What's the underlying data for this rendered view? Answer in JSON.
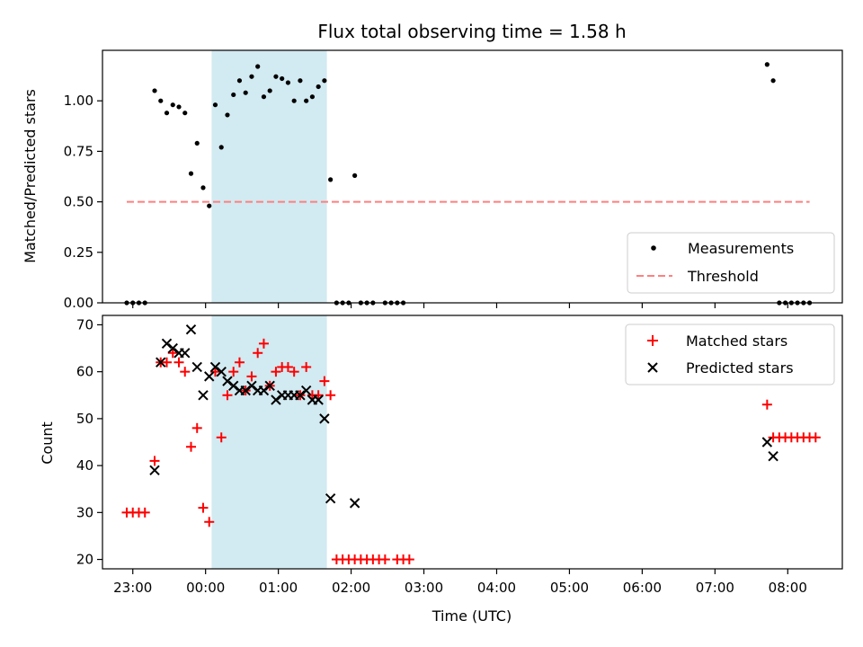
{
  "chart_data": [
    {
      "type": "scatter",
      "title": "Flux total observing time = 1.58 h",
      "xlabel": "",
      "ylabel": "Matched/Predicted stars",
      "ylim": [
        0,
        1.25
      ],
      "yticks": [
        "0.00",
        "0.25",
        "0.50",
        "0.75",
        "1.00"
      ],
      "xlim": [
        "22:35",
        "08:45"
      ],
      "shaded_region": [
        "00:05",
        "01:40"
      ],
      "shaded_color": "#add8e6",
      "legend_position": "lower-right",
      "series": [
        {
          "name": "Measurements",
          "kind": "points",
          "color": "#000000",
          "points": [
            [
              "22:55",
              0
            ],
            [
              "23:00",
              0
            ],
            [
              "23:05",
              0
            ],
            [
              "23:10",
              0
            ],
            [
              "23:18",
              1.05
            ],
            [
              "23:23",
              1.0
            ],
            [
              "23:28",
              0.94
            ],
            [
              "23:33",
              0.98
            ],
            [
              "23:38",
              0.97
            ],
            [
              "23:43",
              0.94
            ],
            [
              "23:48",
              0.64
            ],
            [
              "23:53",
              0.79
            ],
            [
              "23:58",
              0.57
            ],
            [
              "00:03",
              0.48
            ],
            [
              "00:08",
              0.98
            ],
            [
              "00:13",
              0.77
            ],
            [
              "00:18",
              0.93
            ],
            [
              "00:23",
              1.03
            ],
            [
              "00:28",
              1.1
            ],
            [
              "00:33",
              1.04
            ],
            [
              "00:38",
              1.12
            ],
            [
              "00:43",
              1.17
            ],
            [
              "00:48",
              1.02
            ],
            [
              "00:53",
              1.05
            ],
            [
              "00:58",
              1.12
            ],
            [
              "01:03",
              1.11
            ],
            [
              "01:08",
              1.09
            ],
            [
              "01:13",
              1.0
            ],
            [
              "01:18",
              1.1
            ],
            [
              "01:23",
              1.0
            ],
            [
              "01:28",
              1.02
            ],
            [
              "01:33",
              1.07
            ],
            [
              "01:38",
              1.1
            ],
            [
              "01:43",
              0.61
            ],
            [
              "01:48",
              0
            ],
            [
              "01:53",
              0
            ],
            [
              "01:58",
              0
            ],
            [
              "02:03",
              0.63
            ],
            [
              "02:08",
              0
            ],
            [
              "02:13",
              0
            ],
            [
              "02:18",
              0
            ],
            [
              "02:28",
              0
            ],
            [
              "02:33",
              0
            ],
            [
              "02:38",
              0
            ],
            [
              "02:43",
              0
            ],
            [
              "07:43",
              1.18
            ],
            [
              "07:48",
              1.1
            ],
            [
              "07:53",
              0
            ],
            [
              "07:58",
              0
            ],
            [
              "08:03",
              0
            ],
            [
              "08:08",
              0
            ],
            [
              "08:13",
              0
            ],
            [
              "08:18",
              0
            ]
          ]
        },
        {
          "name": "Threshold",
          "kind": "dashed-line",
          "color": "#ff7f7f",
          "points": [
            [
              "22:55",
              0.5
            ],
            [
              "08:18",
              0.5
            ]
          ]
        }
      ]
    },
    {
      "type": "scatter",
      "title": "",
      "xlabel": "Time (UTC)",
      "ylabel": "Count",
      "ylim": [
        18,
        72
      ],
      "yticks": [
        "20",
        "30",
        "40",
        "50",
        "60",
        "70"
      ],
      "xlim": [
        "22:35",
        "08:45"
      ],
      "xticks": [
        "23:00",
        "00:00",
        "01:00",
        "02:00",
        "03:00",
        "04:00",
        "05:00",
        "06:00",
        "07:00",
        "08:00"
      ],
      "shaded_region": [
        "00:05",
        "01:40"
      ],
      "shaded_color": "#add8e6",
      "legend_position": "top-right",
      "series": [
        {
          "name": "Matched stars",
          "marker": "plus",
          "color": "#ff0000",
          "points": [
            [
              "22:55",
              30
            ],
            [
              "23:00",
              30
            ],
            [
              "23:05",
              30
            ],
            [
              "23:10",
              30
            ],
            [
              "23:18",
              41
            ],
            [
              "23:23",
              62
            ],
            [
              "23:28",
              62
            ],
            [
              "23:33",
              64
            ],
            [
              "23:38",
              62
            ],
            [
              "23:43",
              60
            ],
            [
              "23:48",
              44
            ],
            [
              "23:53",
              48
            ],
            [
              "23:58",
              31
            ],
            [
              "00:03",
              28
            ],
            [
              "00:08",
              60
            ],
            [
              "00:13",
              46
            ],
            [
              "00:18",
              55
            ],
            [
              "00:23",
              60
            ],
            [
              "00:28",
              62
            ],
            [
              "00:33",
              56
            ],
            [
              "00:38",
              59
            ],
            [
              "00:43",
              64
            ],
            [
              "00:48",
              66
            ],
            [
              "00:53",
              57
            ],
            [
              "00:58",
              60
            ],
            [
              "01:03",
              61
            ],
            [
              "01:08",
              61
            ],
            [
              "01:13",
              60
            ],
            [
              "01:18",
              55
            ],
            [
              "01:23",
              61
            ],
            [
              "01:28",
              55
            ],
            [
              "01:33",
              55
            ],
            [
              "01:38",
              58
            ],
            [
              "01:43",
              55
            ],
            [
              "01:48",
              20
            ],
            [
              "01:53",
              20
            ],
            [
              "01:58",
              20
            ],
            [
              "02:03",
              20
            ],
            [
              "02:08",
              20
            ],
            [
              "02:13",
              20
            ],
            [
              "02:18",
              20
            ],
            [
              "02:23",
              20
            ],
            [
              "02:28",
              20
            ],
            [
              "02:38",
              20
            ],
            [
              "02:43",
              20
            ],
            [
              "02:48",
              20
            ],
            [
              "07:43",
              53
            ],
            [
              "07:48",
              46
            ],
            [
              "07:53",
              46
            ],
            [
              "07:58",
              46
            ],
            [
              "08:03",
              46
            ],
            [
              "08:08",
              46
            ],
            [
              "08:13",
              46
            ],
            [
              "08:18",
              46
            ],
            [
              "08:23",
              46
            ]
          ]
        },
        {
          "name": "Predicted stars",
          "marker": "x",
          "color": "#000000",
          "points": [
            [
              "23:18",
              39
            ],
            [
              "23:23",
              62
            ],
            [
              "23:28",
              66
            ],
            [
              "23:33",
              65
            ],
            [
              "23:38",
              64
            ],
            [
              "23:43",
              64
            ],
            [
              "23:48",
              69
            ],
            [
              "23:53",
              61
            ],
            [
              "23:58",
              55
            ],
            [
              "00:03",
              59
            ],
            [
              "00:08",
              61
            ],
            [
              "00:13",
              60
            ],
            [
              "00:18",
              58
            ],
            [
              "00:23",
              57
            ],
            [
              "00:28",
              56
            ],
            [
              "00:33",
              56
            ],
            [
              "00:38",
              57
            ],
            [
              "00:43",
              56
            ],
            [
              "00:48",
              56
            ],
            [
              "00:53",
              57
            ],
            [
              "00:58",
              54
            ],
            [
              "01:03",
              55
            ],
            [
              "01:08",
              55
            ],
            [
              "01:13",
              55
            ],
            [
              "01:18",
              55
            ],
            [
              "01:23",
              56
            ],
            [
              "01:28",
              54
            ],
            [
              "01:33",
              54
            ],
            [
              "01:38",
              50
            ],
            [
              "01:43",
              33
            ],
            [
              "02:03",
              32
            ],
            [
              "07:43",
              45
            ],
            [
              "07:48",
              42
            ]
          ]
        }
      ]
    }
  ]
}
